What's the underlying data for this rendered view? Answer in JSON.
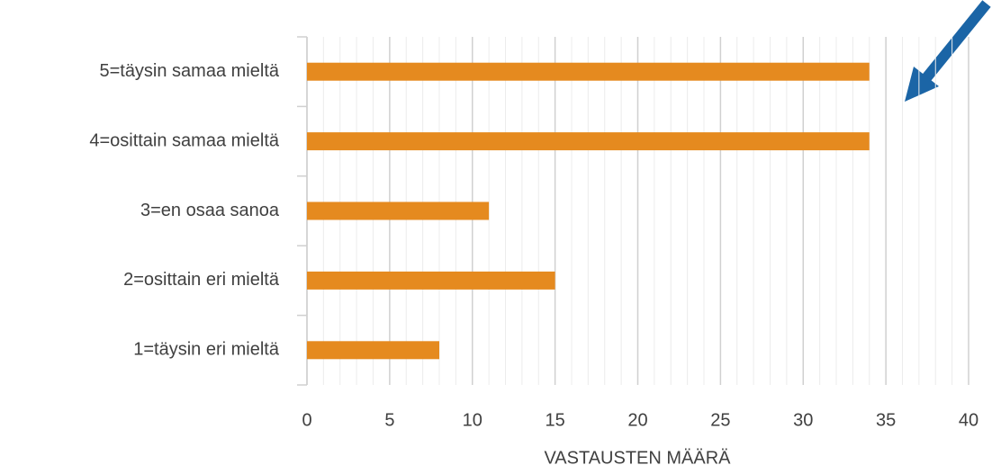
{
  "chart_data": {
    "type": "bar",
    "orientation": "horizontal",
    "categories": [
      "5=täysin samaa mieltä",
      "4=osittain samaa mieltä",
      "3=en osaa sanoa",
      "2=osittain eri mieltä",
      "1=täysin eri mieltä"
    ],
    "values": [
      34,
      34,
      11,
      15,
      8
    ],
    "color": "#e58a1f",
    "xlabel": "VASTAUSTEN MÄÄRÄ",
    "xlim": [
      0,
      40
    ],
    "xticks": [
      0,
      5,
      10,
      15,
      20,
      25,
      30,
      35,
      40
    ],
    "grid": true
  }
}
